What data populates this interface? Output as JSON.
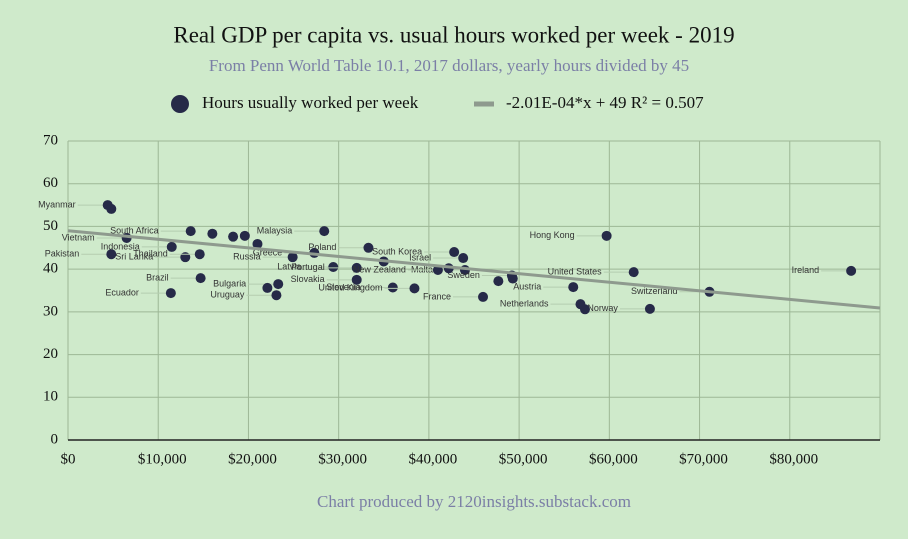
{
  "chart_data": {
    "type": "scatter",
    "title": "Real GDP per capita vs. usual hours worked per week - 2019",
    "subtitle": "From Penn World Table 10.1, 2017 dollars, yearly hours divided by 45",
    "footer": "Chart produced by 2120insights.substack.com",
    "xlim": [
      0,
      90000
    ],
    "ylim": [
      0,
      70
    ],
    "xticks": [
      {
        "value": 0,
        "label": "$0"
      },
      {
        "value": 10000,
        "label": "$10,000"
      },
      {
        "value": 20000,
        "label": "$20,000"
      },
      {
        "value": 30000,
        "label": "$30,000"
      },
      {
        "value": 40000,
        "label": "$40,000"
      },
      {
        "value": 50000,
        "label": "$50,000"
      },
      {
        "value": 60000,
        "label": "$60,000"
      },
      {
        "value": 70000,
        "label": "$70,000"
      },
      {
        "value": 80000,
        "label": "$80,000"
      }
    ],
    "yticks": [
      0,
      10,
      20,
      30,
      40,
      50,
      60,
      70
    ],
    "grid": true,
    "legend": "top",
    "series": [
      {
        "name": "Hours usually worked per week",
        "color": "#262a48",
        "x": [
          4400,
          4800,
          6500,
          13600,
          11500,
          4800,
          13000,
          14600,
          14700,
          11400,
          23300,
          23100,
          22100,
          28400,
          24900,
          27300,
          33300,
          29400,
          32000,
          32000,
          36000,
          42800,
          43800,
          44000,
          41000,
          38400,
          46000,
          49200,
          56000,
          59700,
          62700,
          56800,
          64500,
          71100,
          86800,
          18300,
          19600,
          21000,
          16000,
          35000,
          47700,
          57300,
          49300,
          42200
        ],
        "values": [
          55.0,
          54.1,
          47.3,
          48.9,
          45.2,
          43.5,
          42.8,
          43.5,
          37.9,
          34.4,
          36.5,
          33.9,
          35.6,
          48.9,
          42.8,
          43.8,
          45.0,
          40.5,
          40.3,
          37.5,
          35.7,
          44.0,
          42.6,
          39.8,
          39.8,
          35.5,
          33.5,
          38.5,
          35.8,
          47.8,
          39.3,
          31.8,
          30.7,
          34.7,
          39.6,
          47.6,
          47.8,
          45.9,
          48.3,
          41.8,
          37.2,
          30.6,
          37.8,
          40.2
        ],
        "labels": [
          "Myanmar",
          null,
          "Vietnam",
          "South Africa",
          "Indonesia",
          "Pakistan",
          "Sri Lanka",
          "Thailand",
          "Brazil",
          "Ecuador",
          "Bulgaria",
          "Uruguay",
          null,
          "Malaysia",
          "Russia",
          "Greece",
          "Poland",
          "Latvia",
          "Portugal",
          "Slovakia",
          "Slovenia",
          "South Korea",
          "Israel",
          "Malta",
          "New Zealand",
          "United Kingdom",
          "France",
          "Sweden",
          "Austria",
          "Hong Kong",
          "United States",
          "Netherlands",
          "Norway",
          "Switzerland",
          "Ireland",
          null,
          null,
          null,
          null,
          null,
          null,
          null,
          null,
          null
        ]
      },
      {
        "name": "-2.01E-04*x + 49 R² = 0.507",
        "color": "#8e9a8e",
        "type": "line",
        "x": [
          0,
          90000
        ],
        "values": [
          49,
          30.91
        ]
      }
    ]
  }
}
